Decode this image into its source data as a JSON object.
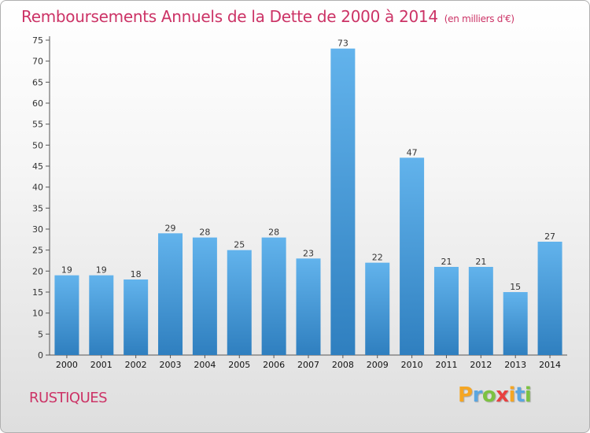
{
  "title": "Remboursements Annuels de la Dette de 2000 à 2014",
  "subtitle": "(en milliers d'€)",
  "commune": "RUSTIQUES",
  "logo": {
    "letters": [
      "P",
      "r",
      "o",
      "x",
      "i",
      "t",
      "i"
    ],
    "colors": [
      "#f5a623",
      "#5aa6e0",
      "#7cc242",
      "#e84040",
      "#f5a623",
      "#5aa6e0",
      "#7cc242"
    ]
  },
  "colors": {
    "bar_light": "#62b3ec",
    "bar_dark": "#2f7fbf",
    "title": "#cc3366"
  },
  "chart_data": {
    "type": "bar",
    "title": "Remboursements Annuels de la Dette de 2000 à 2014",
    "subtitle": "(en milliers d'€)",
    "categories": [
      "2000",
      "2001",
      "2002",
      "2003",
      "2004",
      "2005",
      "2006",
      "2007",
      "2008",
      "2009",
      "2010",
      "2011",
      "2012",
      "2013",
      "2014"
    ],
    "values": [
      19,
      19,
      18,
      29,
      28,
      25,
      28,
      23,
      73,
      22,
      47,
      21,
      21,
      15,
      27
    ],
    "ylim": [
      0,
      75
    ],
    "yticks": [
      0,
      5,
      10,
      15,
      20,
      25,
      30,
      35,
      40,
      45,
      50,
      55,
      60,
      65,
      70,
      75
    ],
    "grid": false,
    "data_labels": true
  }
}
